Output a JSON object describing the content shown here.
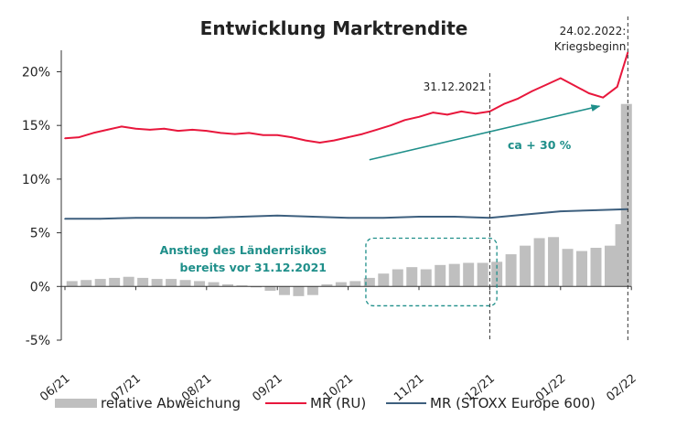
{
  "chart_data": {
    "type": "line",
    "title": "Entwicklung Marktrendite",
    "ylim": [
      -0.05,
      0.22
    ],
    "y_ticks": [
      {
        "value": 0.2,
        "label": "20%"
      },
      {
        "value": 0.15,
        "label": "15%"
      },
      {
        "value": 0.1,
        "label": "10%"
      },
      {
        "value": 0.05,
        "label": "5%"
      },
      {
        "value": 0.0,
        "label": "0%"
      },
      {
        "value": -0.05,
        "label": "-5%"
      }
    ],
    "x_ticks": [
      "06/21",
      "07/21",
      "08/21",
      "09/21",
      "10/21",
      "11/21",
      "12/21",
      "01/22",
      "02/22"
    ],
    "grid": false,
    "legend_position": "bottom",
    "series": [
      {
        "name": "MR (RU)",
        "kind": "line",
        "color": "#e8173c",
        "x": [
          0.0,
          0.2,
          0.4,
          0.6,
          0.8,
          1.0,
          1.2,
          1.4,
          1.6,
          1.8,
          2.0,
          2.2,
          2.4,
          2.6,
          2.8,
          3.0,
          3.2,
          3.4,
          3.6,
          3.8,
          4.0,
          4.2,
          4.4,
          4.6,
          4.8,
          5.0,
          5.2,
          5.4,
          5.6,
          5.8,
          6.0,
          6.2,
          6.4,
          6.6,
          6.8,
          7.0,
          7.2,
          7.4,
          7.6,
          7.8,
          7.95
        ],
        "values": [
          0.138,
          0.139,
          0.143,
          0.146,
          0.149,
          0.147,
          0.146,
          0.147,
          0.145,
          0.146,
          0.145,
          0.143,
          0.142,
          0.143,
          0.141,
          0.141,
          0.139,
          0.136,
          0.134,
          0.136,
          0.139,
          0.142,
          0.146,
          0.15,
          0.155,
          0.158,
          0.162,
          0.16,
          0.163,
          0.161,
          0.163,
          0.17,
          0.175,
          0.182,
          0.188,
          0.194,
          0.187,
          0.18,
          0.176,
          0.186,
          0.218
        ]
      },
      {
        "name": "MR (STOXX Europe 600)",
        "kind": "line",
        "color": "#3d5f7e",
        "x": [
          0.0,
          0.5,
          1.0,
          1.5,
          2.0,
          2.5,
          3.0,
          3.5,
          4.0,
          4.5,
          5.0,
          5.5,
          6.0,
          6.5,
          7.0,
          7.5,
          7.95
        ],
        "values": [
          0.063,
          0.063,
          0.064,
          0.064,
          0.064,
          0.065,
          0.066,
          0.065,
          0.064,
          0.064,
          0.065,
          0.065,
          0.064,
          0.067,
          0.07,
          0.071,
          0.072
        ]
      },
      {
        "name": "relative Abweichung",
        "kind": "bar",
        "color": "#bfbfbf",
        "x": [
          0.1,
          0.3,
          0.5,
          0.7,
          0.9,
          1.1,
          1.3,
          1.5,
          1.7,
          1.9,
          2.1,
          2.3,
          2.5,
          2.7,
          2.9,
          3.1,
          3.3,
          3.5,
          3.7,
          3.9,
          4.1,
          4.3,
          4.5,
          4.7,
          4.9,
          5.1,
          5.3,
          5.5,
          5.7,
          5.9,
          6.1,
          6.3,
          6.5,
          6.7,
          6.9,
          7.1,
          7.3,
          7.5,
          7.7,
          7.85,
          7.93
        ],
        "values": [
          0.005,
          0.006,
          0.007,
          0.008,
          0.009,
          0.008,
          0.007,
          0.007,
          0.006,
          0.005,
          0.004,
          0.002,
          0.001,
          0.0,
          -0.004,
          -0.008,
          -0.009,
          -0.008,
          0.002,
          0.004,
          0.005,
          0.008,
          0.012,
          0.016,
          0.018,
          0.016,
          0.02,
          0.021,
          0.022,
          0.022,
          0.023,
          0.03,
          0.038,
          0.045,
          0.046,
          0.035,
          0.033,
          0.036,
          0.038,
          0.058,
          0.17
        ]
      }
    ],
    "annotations": {
      "date_left": "31.12.2021",
      "date_right_line1": "24.02.2022:",
      "date_right_line2": "Kriegsbeginn",
      "trend_label": "ca + 30 %",
      "box_line1": "Anstieg des Länderrisikos",
      "box_line2": "bereits vor 31.12.2021"
    },
    "annotation_marks": {
      "vline_left_x": 6.0,
      "vline_right_x": 7.95,
      "trend_arrow": {
        "from": [
          4.3,
          0.118
        ],
        "to": [
          7.55,
          0.168
        ]
      },
      "dashed_box": {
        "x0": 4.25,
        "x1": 6.1,
        "y0": -0.018,
        "y1": 0.045
      }
    },
    "colors": {
      "teal": "#1f8f8a",
      "axis": "#333333"
    }
  }
}
